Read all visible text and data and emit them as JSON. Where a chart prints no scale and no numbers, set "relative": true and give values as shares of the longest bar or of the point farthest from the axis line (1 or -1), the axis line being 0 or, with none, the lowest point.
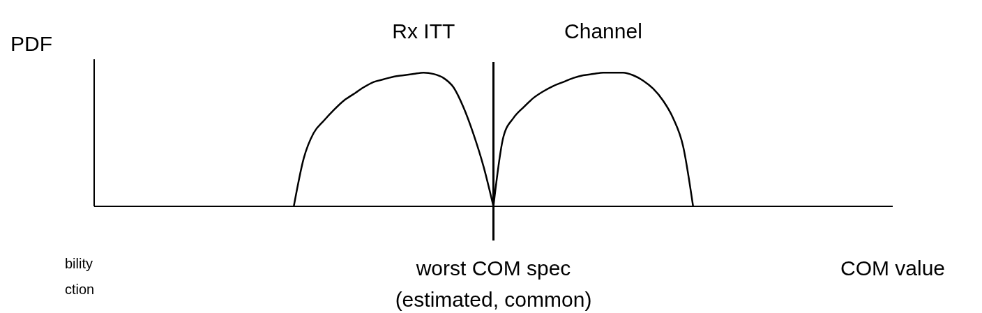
{
  "chart_data": {
    "type": "line",
    "relative": true,
    "ylabel": "PDF",
    "xlabel": "COM value",
    "legend": false,
    "marker": "none",
    "line_style": "solid",
    "categories": [
      null,
      null,
      null,
      null,
      null,
      null,
      null,
      null,
      null,
      null,
      null,
      null,
      null,
      null,
      null,
      null,
      null,
      null,
      null,
      null,
      null,
      null,
      null,
      null,
      null,
      null,
      null,
      null,
      null,
      null,
      null,
      null,
      null,
      null,
      null,
      null,
      null,
      null,
      null,
      null,
      null,
      null,
      null,
      null,
      null,
      null,
      null,
      null,
      null,
      null,
      null,
      null,
      null,
      null,
      null,
      null,
      null,
      null,
      null,
      null,
      null,
      null,
      null,
      null,
      null,
      null,
      null,
      null,
      null,
      null,
      null,
      null,
      null,
      null,
      null,
      null,
      null,
      null,
      null,
      null,
      null
    ],
    "series": [
      {
        "name": "Rx ITT",
        "color": "#000000",
        "values": [
          null,
          null,
          null,
          null,
          null,
          null,
          null,
          null,
          null,
          null,
          null,
          null,
          null,
          null,
          null,
          null,
          null,
          null,
          null,
          null,
          0,
          0.36,
          0.55,
          0.64,
          0.72,
          0.79,
          0.84,
          0.89,
          0.93,
          0.95,
          0.97,
          0.98,
          0.99,
          1.0,
          0.99,
          0.96,
          0.89,
          0.74,
          0.54,
          0.3,
          0,
          null,
          null,
          null,
          null,
          null,
          null,
          null,
          null,
          null,
          null,
          null,
          null,
          null,
          null,
          null,
          null,
          null,
          null,
          null,
          null,
          null,
          null,
          null,
          null,
          null,
          null,
          null,
          null,
          null,
          null,
          null,
          null,
          null,
          null,
          null,
          null,
          null,
          null,
          null,
          null
        ]
      },
      {
        "name": "Channel",
        "color": "#000000",
        "values": [
          null,
          null,
          null,
          null,
          null,
          null,
          null,
          null,
          null,
          null,
          null,
          null,
          null,
          null,
          null,
          null,
          null,
          null,
          null,
          null,
          null,
          null,
          null,
          null,
          null,
          null,
          null,
          null,
          null,
          null,
          null,
          null,
          null,
          null,
          null,
          null,
          null,
          null,
          null,
          null,
          0,
          0.52,
          0.66,
          0.74,
          0.81,
          0.86,
          0.9,
          0.93,
          0.96,
          0.98,
          0.99,
          1.0,
          1.0,
          1.0,
          0.98,
          0.94,
          0.88,
          0.79,
          0.66,
          0.45,
          0,
          null,
          null,
          null,
          null,
          null,
          null,
          null,
          null,
          null,
          null,
          null,
          null,
          null,
          null,
          null,
          null,
          null,
          null,
          null,
          null
        ]
      }
    ],
    "annotations": [
      "worst COM spec\n(estimated, common)",
      "bility",
      "ction"
    ]
  }
}
